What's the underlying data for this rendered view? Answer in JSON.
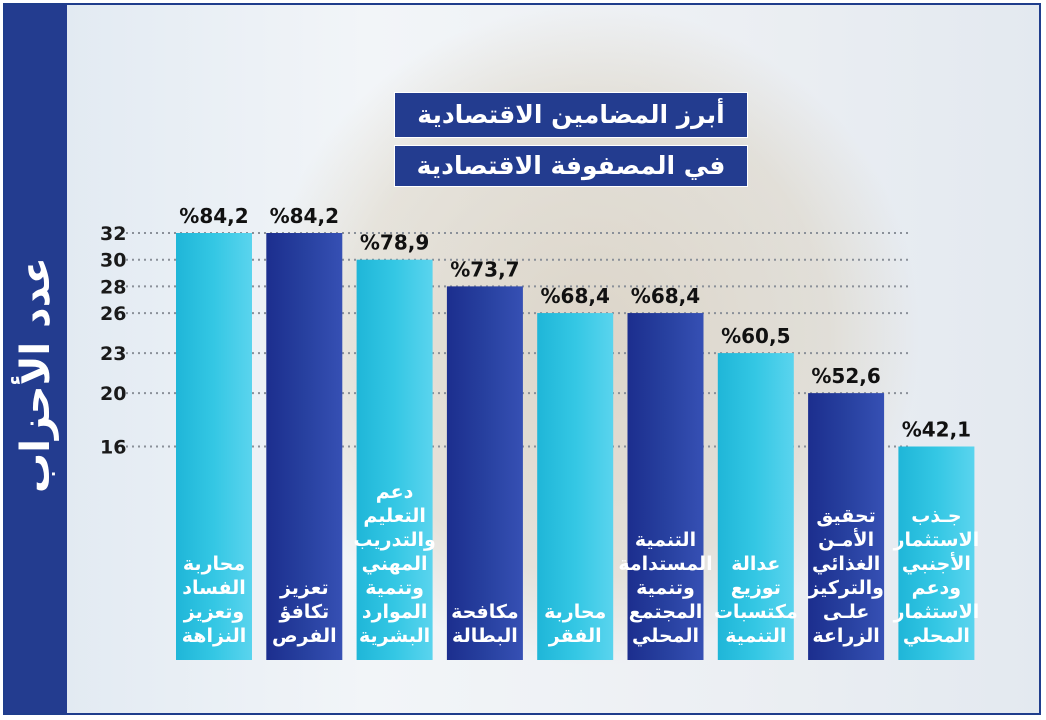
{
  "title_line1": "أبرز المضامين الاقتصادية",
  "title_line2": "في المصفوفة الاقتصادية",
  "colors": {
    "frame": "#1f3d8c",
    "title_bg": "#233c8f",
    "bar_light": [
      "#1fb6d8",
      "#34c7e4",
      "#5ad4ee"
    ],
    "bar_dark": [
      "#1c2e8e",
      "#27409f",
      "#3650b4"
    ]
  },
  "chart_data": {
    "type": "bar",
    "ylabel": "عدد الأحزاب",
    "yticks": [
      16,
      20,
      23,
      26,
      28,
      30,
      32
    ],
    "ylim": [
      0,
      32
    ],
    "grid": "dotted lines at tick values",
    "bars": [
      {
        "category": [
          "محاربة",
          "الفساد",
          "وتعزيز",
          "النزاهة"
        ],
        "value": 32,
        "percent_label": "%84,2",
        "style": "light"
      },
      {
        "category": [
          "تعزيز",
          "تكافؤ",
          "الفرص"
        ],
        "value": 32,
        "percent_label": "%84,2",
        "style": "dark"
      },
      {
        "category": [
          "دعم",
          "التعليم",
          "والتدريب",
          "المهني",
          "وتنمية",
          "الموارد",
          "البشرية"
        ],
        "value": 30,
        "percent_label": "%78,9",
        "style": "light"
      },
      {
        "category": [
          "مكافحة",
          "البطالة"
        ],
        "value": 28,
        "percent_label": "%73,7",
        "style": "dark"
      },
      {
        "category": [
          "محاربة",
          "الفقر"
        ],
        "value": 26,
        "percent_label": "%68,4",
        "style": "light"
      },
      {
        "category": [
          "التنمية",
          "المستدامة",
          "وتنمية",
          "المجتمع",
          "المحلي"
        ],
        "value": 26,
        "percent_label": "%68,4",
        "style": "dark"
      },
      {
        "category": [
          "عدالة",
          "توزيع",
          "مكتسبات",
          "التنمية"
        ],
        "value": 23,
        "percent_label": "%60,5",
        "style": "light"
      },
      {
        "category": [
          "تحقيق",
          "الأمـن",
          "الغذائي",
          "والتركيز",
          "علـى",
          "الزراعة"
        ],
        "value": 20,
        "percent_label": "%52,6",
        "style": "dark"
      },
      {
        "category": [
          "جـذب",
          "الاستثمار",
          "الأجنبي",
          "ودعم",
          "الاستثمار",
          "المحلي"
        ],
        "value": 16,
        "percent_label": "%42,1",
        "style": "light"
      }
    ]
  }
}
